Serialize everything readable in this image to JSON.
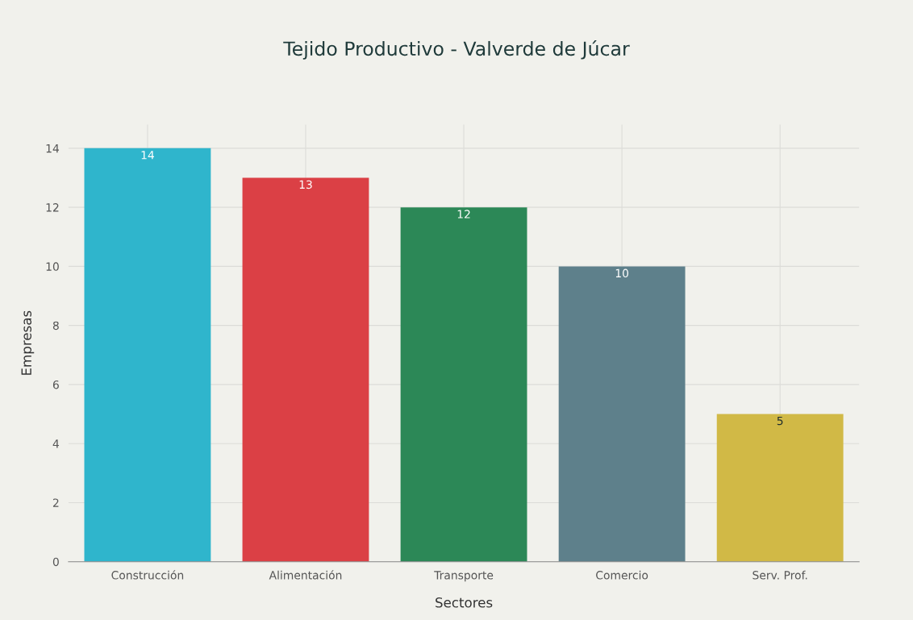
{
  "chart_data": {
    "type": "bar",
    "title": "Tejido Productivo - Valverde de Júcar",
    "xlabel": "Sectores",
    "ylabel": "Empresas",
    "categories": [
      "Construcción",
      "Alimentación",
      "Transporte",
      "Comercio",
      "Serv. Prof."
    ],
    "values": [
      14,
      13,
      12,
      10,
      5
    ],
    "colors": [
      "#2fb5cc",
      "#db4045",
      "#2c8857",
      "#5e808b",
      "#d1b946"
    ],
    "ylim": [
      0,
      14.8
    ],
    "yticks": [
      0,
      2,
      4,
      6,
      8,
      10,
      12,
      14
    ],
    "grid": true,
    "data_labels": true
  }
}
